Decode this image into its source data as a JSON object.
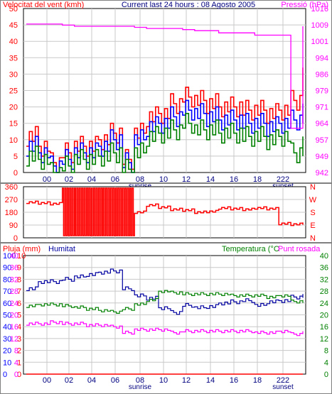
{
  "chart_data": [
    {
      "type": "line",
      "title": "Current last 24 hours : 08 Agosto 2005",
      "ylabel_left": "Velocitat del vent (kmh)",
      "ylabel_right": "Pressió (hPa)",
      "yticks_left": [
        "0",
        "5",
        "10",
        "15",
        "20",
        "25",
        "30",
        "35",
        "40",
        "45",
        "50"
      ],
      "yticks_right": [
        "942",
        "949",
        "957",
        "964",
        "971",
        "979",
        "986",
        "994",
        "1001",
        "1009",
        "1016"
      ],
      "ylim_left": [
        0,
        50
      ],
      "ylim_right": [
        942,
        1016
      ],
      "x_ticks": [
        "00",
        "02",
        "04",
        "06",
        "08",
        "10",
        "12",
        "14",
        "16",
        "18",
        "222"
      ],
      "x_markers": [
        "sunrise",
        "sunset"
      ],
      "colors": {
        "gust": "#ff0000",
        "wind": "#0000ff",
        "min": "#008000",
        "pressure": "#ff00ff"
      },
      "x": [
        0,
        1,
        2,
        3,
        4,
        5,
        6,
        7,
        8,
        9,
        10,
        11,
        12,
        13,
        14,
        15,
        16,
        17,
        18,
        19,
        20,
        21,
        22,
        23
      ],
      "series": [
        {
          "name": "",
          "color": "#ff0000",
          "values": [
            11,
            8,
            3,
            6,
            8,
            8,
            10,
            12,
            4,
            12,
            17,
            18,
            21,
            23,
            22,
            21,
            20,
            20,
            19,
            19,
            18,
            19,
            22,
            29
          ]
        },
        {
          "name": "",
          "color": "#0000ff",
          "values": [
            8,
            6,
            2,
            4,
            6,
            6,
            8,
            10,
            3,
            10,
            14,
            15,
            17,
            19,
            18,
            17,
            16,
            16,
            15,
            15,
            14,
            15,
            16,
            18
          ]
        },
        {
          "name": "",
          "color": "#008000",
          "values": [
            5,
            4,
            0,
            2,
            4,
            4,
            5,
            6,
            1,
            6,
            11,
            12,
            13,
            15,
            13,
            13,
            12,
            12,
            11,
            11,
            10,
            11,
            6,
            8
          ]
        },
        {
          "name": "",
          "color": "#ff00ff",
          "values": [
            1009,
            1009,
            1009,
            1008.5,
            1008,
            1008,
            1008,
            1008,
            1008,
            1007.5,
            1007,
            1007,
            1007,
            1006.5,
            1006,
            1006,
            1005,
            1005,
            1005,
            1004,
            1004,
            1004,
            962,
            1008
          ]
        }
      ]
    },
    {
      "type": "line",
      "title": "",
      "yticks_left": [
        "0",
        "90",
        "180",
        "270",
        "360"
      ],
      "yticks_right": [
        "N",
        "E",
        "S",
        "W",
        "N"
      ],
      "ylim": [
        0,
        360
      ],
      "x_ticks": [
        "00",
        "02",
        "04",
        "06",
        "08",
        "10",
        "12",
        "14",
        "16",
        "18",
        "222"
      ],
      "color": "#ff0000",
      "x": [
        0,
        1,
        2,
        3,
        4,
        5,
        6,
        7,
        8,
        9,
        10,
        11,
        12,
        13,
        14,
        15,
        16,
        17,
        18,
        19,
        20,
        21,
        22,
        23
      ],
      "values": [
        250,
        245,
        240,
        230,
        20,
        15,
        10,
        150,
        10,
        180,
        230,
        215,
        200,
        195,
        180,
        185,
        210,
        205,
        200,
        210,
        205,
        100,
        95,
        100
      ]
    },
    {
      "type": "line",
      "title": "",
      "ylabel_left": "Pluja (mm)",
      "ylabel_left2": "Humitat",
      "ylabel_right": "Temperatura (°C",
      "ylabel_right2": "Punt rosada",
      "yticks_rain": [
        "0",
        "1",
        "2",
        "3",
        "4",
        "5",
        "6",
        "7",
        "8",
        "9",
        "10"
      ],
      "yticks_hum": [
        "0",
        "10",
        "20",
        "30",
        "40",
        "50",
        "60",
        "70",
        "80",
        "90",
        "100"
      ],
      "yticks_temp_left": [
        "0",
        "4",
        "8",
        "12",
        "16",
        "20",
        "24",
        "28",
        "32",
        "36",
        "40"
      ],
      "yticks_temp_right": [
        "0",
        "4",
        "8",
        "12",
        "16",
        "20",
        "24",
        "28",
        "32",
        "36",
        "40"
      ],
      "ylim_temp": [
        0,
        40
      ],
      "x_ticks": [
        "00",
        "02",
        "04",
        "06",
        "08",
        "10",
        "12",
        "14",
        "16",
        "18",
        "222"
      ],
      "x_markers": [
        "sunrise",
        "sunset"
      ],
      "colors": {
        "humidity": "#0000a0",
        "temperature": "#008000",
        "dewpoint": "#ff00ff",
        "rain": "#ff0000"
      },
      "x": [
        0,
        1,
        2,
        3,
        4,
        5,
        6,
        7,
        8,
        9,
        10,
        11,
        12,
        13,
        14,
        15,
        16,
        17,
        18,
        19,
        20,
        21,
        22,
        23
      ],
      "series": [
        {
          "name": "Humitat",
          "color": "#0000a0",
          "axis": "hum",
          "values": [
            72,
            78,
            78,
            80,
            82,
            84,
            86,
            87,
            72,
            66,
            64,
            56,
            52,
            58,
            56,
            57,
            60,
            61,
            62,
            58,
            61,
            62,
            65,
            66
          ]
        },
        {
          "name": "Temperatura",
          "color": "#008000",
          "axis": "temp",
          "values": [
            23,
            23.5,
            23.5,
            23,
            22.5,
            22,
            21.5,
            21,
            22,
            23.5,
            25,
            28,
            27.5,
            27,
            27,
            27,
            27,
            26.5,
            26.5,
            26.5,
            26,
            26.5,
            24.5,
            24.5
          ]
        },
        {
          "name": "Punt rosada",
          "color": "#ff00ff",
          "axis": "temp",
          "values": [
            17,
            17,
            17.5,
            17,
            17,
            16.5,
            16.5,
            16,
            14,
            15,
            15,
            15,
            14,
            14.5,
            14.5,
            14.5,
            14.5,
            14.5,
            14.5,
            14,
            14,
            14.5,
            13.5,
            14
          ]
        },
        {
          "name": "Pluja",
          "color": "#ff0000",
          "axis": "rain",
          "values": [
            0,
            0,
            0,
            0,
            0,
            0,
            0,
            0,
            0,
            0,
            0,
            0,
            0,
            0,
            0,
            0,
            0,
            0,
            0,
            0,
            0,
            0,
            0,
            0
          ]
        }
      ]
    }
  ]
}
